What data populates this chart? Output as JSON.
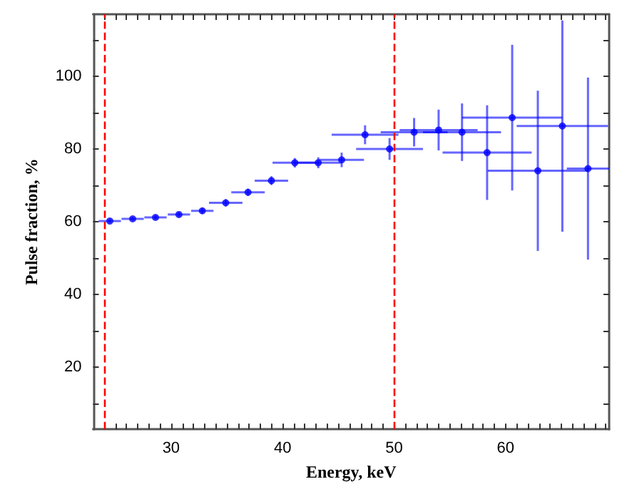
{
  "chart_data": {
    "type": "scatter",
    "xlabel": "Energy, keV",
    "ylabel": "Pulse fraction, %",
    "x": [
      24.5,
      26.55,
      28.6,
      30.7,
      32.8,
      34.9,
      36.9,
      39.0,
      41.1,
      43.2,
      45.3,
      47.4,
      49.6,
      51.8,
      54.0,
      56.1,
      58.35,
      60.6,
      62.9,
      65.1,
      67.4
    ],
    "series": [
      {
        "color": "#0000ff",
        "values": [
          60.2,
          60.8,
          61.2,
          62.0,
          63.0,
          65.2,
          68.1,
          71.3,
          76.2,
          76.2,
          77.0,
          83.9,
          80.0,
          84.6,
          85.2,
          84.6,
          79.0,
          88.6,
          74.0,
          86.3,
          74.6
        ],
        "errors": [
          0.5,
          0.5,
          0.6,
          0.7,
          0.8,
          1.0,
          1.0,
          1.2,
          1.3,
          1.5,
          2.0,
          2.6,
          3.0,
          3.9,
          5.6,
          7.9,
          13,
          20,
          22,
          29,
          25
        ],
        "xerrors": [
          1.0,
          1.0,
          1.0,
          1.0,
          1.0,
          1.5,
          1.5,
          1.5,
          2.0,
          2.0,
          2.0,
          3.0,
          3.0,
          3.0,
          3.5,
          3.5,
          4.0,
          4.5,
          4.5,
          4.1,
          1.9
        ]
      }
    ],
    "marker": "circle",
    "xlim": [
      23,
      69.3
    ],
    "xticks": [
      {
        "value": 24,
        "label": null
      },
      {
        "value": 25,
        "label": null
      },
      {
        "value": 26,
        "label": null
      },
      {
        "value": 27,
        "label": null
      },
      {
        "value": 28,
        "label": null
      },
      {
        "value": 29,
        "label": null
      },
      30,
      {
        "value": 31,
        "label": null
      },
      {
        "value": 32,
        "label": null
      },
      {
        "value": 33,
        "label": null
      },
      {
        "value": 34,
        "label": null
      },
      {
        "value": 35,
        "label": null
      },
      {
        "value": 36,
        "label": null
      },
      {
        "value": 37,
        "label": null
      },
      {
        "value": 38,
        "label": null
      },
      {
        "value": 39,
        "label": null
      },
      40,
      {
        "value": 41,
        "label": null
      },
      {
        "value": 42,
        "label": null
      },
      {
        "value": 43,
        "label": null
      },
      {
        "value": 44,
        "label": null
      },
      {
        "value": 45,
        "label": null
      },
      {
        "value": 46,
        "label": null
      },
      {
        "value": 47,
        "label": null
      },
      {
        "value": 48,
        "label": null
      },
      {
        "value": 49,
        "label": null
      },
      50,
      {
        "value": 51,
        "label": null
      },
      {
        "value": 52,
        "label": null
      },
      {
        "value": 53,
        "label": null
      },
      {
        "value": 54,
        "label": null
      },
      {
        "value": 55,
        "label": null
      },
      {
        "value": 56,
        "label": null
      },
      {
        "value": 57,
        "label": null
      },
      {
        "value": 58,
        "label": null
      },
      {
        "value": 59,
        "label": null
      },
      60,
      {
        "value": 61,
        "label": null
      },
      {
        "value": 62,
        "label": null
      },
      {
        "value": 63,
        "label": null
      },
      {
        "value": 64,
        "label": null
      },
      {
        "value": 65,
        "label": null
      },
      {
        "value": 66,
        "label": null
      },
      {
        "value": 67,
        "label": null
      },
      {
        "value": 68,
        "label": null
      },
      {
        "value": 69,
        "label": null
      }
    ],
    "ylim": [
      3,
      117
    ],
    "yticks": [
      {
        "value": 10,
        "label": null
      },
      20,
      {
        "value": 30,
        "label": null
      },
      40,
      {
        "value": 50,
        "label": null
      },
      60,
      {
        "value": 70,
        "label": null
      },
      80,
      {
        "value": 90,
        "label": null
      },
      100,
      {
        "value": 110,
        "label": null
      }
    ],
    "ref_lines": [
      {
        "axis": "x",
        "value": 24,
        "color": "#ff0000",
        "line_style": "dashed"
      },
      {
        "axis": "x",
        "value": 50,
        "color": "#ff0000",
        "line_style": "dashed"
      }
    ],
    "grid": false
  }
}
